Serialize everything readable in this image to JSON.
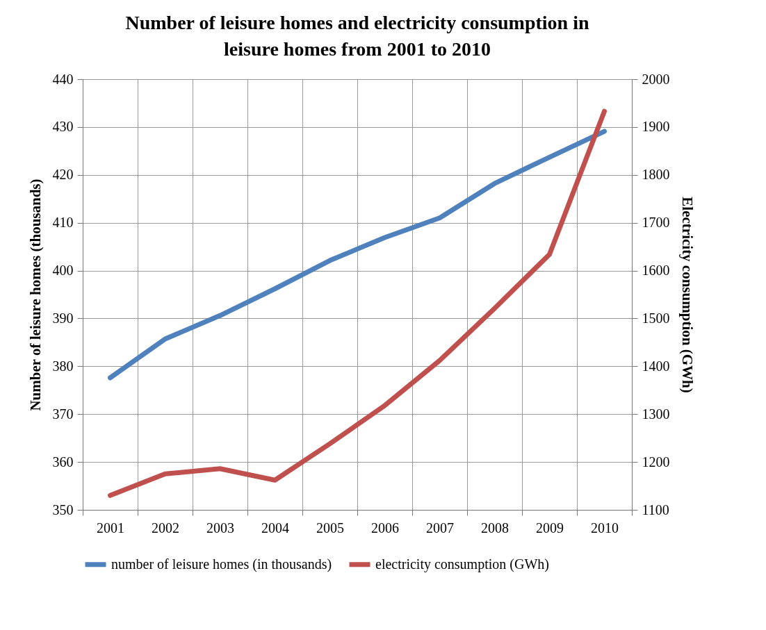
{
  "chart_data": {
    "type": "line",
    "title": "Number of leisure homes and electricity consumption in leisure homes from 2001 to 2010",
    "ylabel": "Number of leisure homes (thousands)",
    "y2label": "Electricity consumption (GWh)",
    "categories": [
      "2001",
      "2002",
      "2003",
      "2004",
      "2005",
      "2006",
      "2007",
      "2008",
      "2009",
      "2010"
    ],
    "series": [
      {
        "name": "number of leisure homes (in thousands)",
        "color": "#4f81bd",
        "values": [
          377.6,
          385.7,
          390.6,
          396.2,
          402.1,
          406.9,
          411,
          418.2,
          423.7,
          429.1
        ]
      },
      {
        "name": "electricity consumption (GWh)",
        "color": "#c0504d",
        "axis": "y2",
        "values": [
          1130,
          1175,
          1186,
          1162,
          1238,
          1318,
          1412,
          1521,
          1634,
          1933
        ]
      }
    ],
    "ylim": [
      350,
      440
    ],
    "yticks": [
      350,
      360,
      370,
      380,
      390,
      400,
      410,
      420,
      430,
      440
    ],
    "y2lim": [
      1100,
      2000
    ],
    "y2ticks": [
      1100,
      1200,
      1300,
      1400,
      1500,
      1600,
      1700,
      1800,
      1900,
      2000
    ],
    "grid": true,
    "legend": "bottom",
    "marker": "none",
    "line_style": "solid"
  }
}
